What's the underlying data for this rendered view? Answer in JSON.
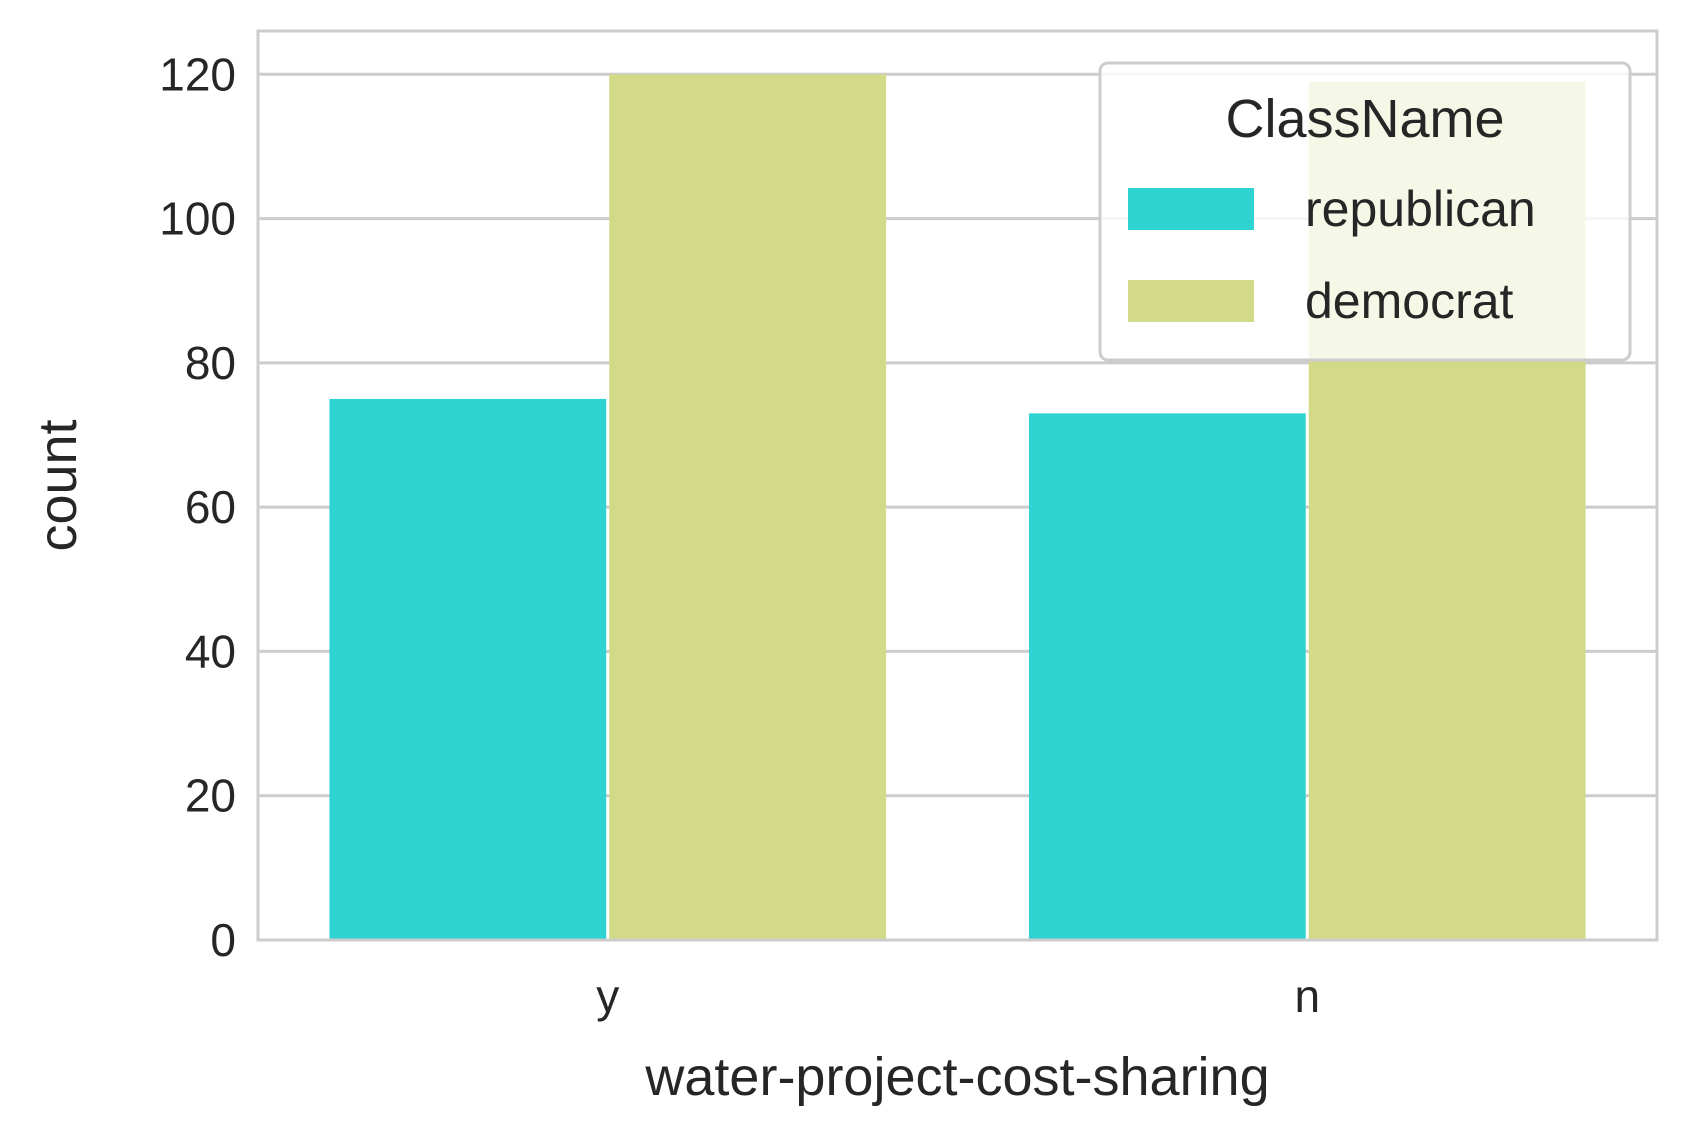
{
  "chart_data": {
    "type": "bar",
    "xlabel": "water-project-cost-sharing",
    "ylabel": "count",
    "categories": [
      "y",
      "n"
    ],
    "ylim": [
      0,
      126
    ],
    "yticks": [
      0,
      20,
      40,
      60,
      80,
      100,
      120
    ],
    "ytick_labels": [
      "0",
      "20",
      "40",
      "60",
      "80",
      "100",
      "120"
    ],
    "series": [
      {
        "name": "republican",
        "values": [
          75,
          73
        ],
        "color": "#2ed3d2"
      },
      {
        "name": "democrat",
        "values": [
          120,
          119
        ],
        "color": "#d2d987"
      }
    ],
    "legend": {
      "title": "ClassName",
      "placement": "top-right",
      "entries": [
        "republican",
        "democrat"
      ]
    },
    "grid": true,
    "colors": {
      "grid": "#cccccc",
      "spine": "#cccccc",
      "text": "#262626",
      "background": "#ffffff"
    }
  }
}
